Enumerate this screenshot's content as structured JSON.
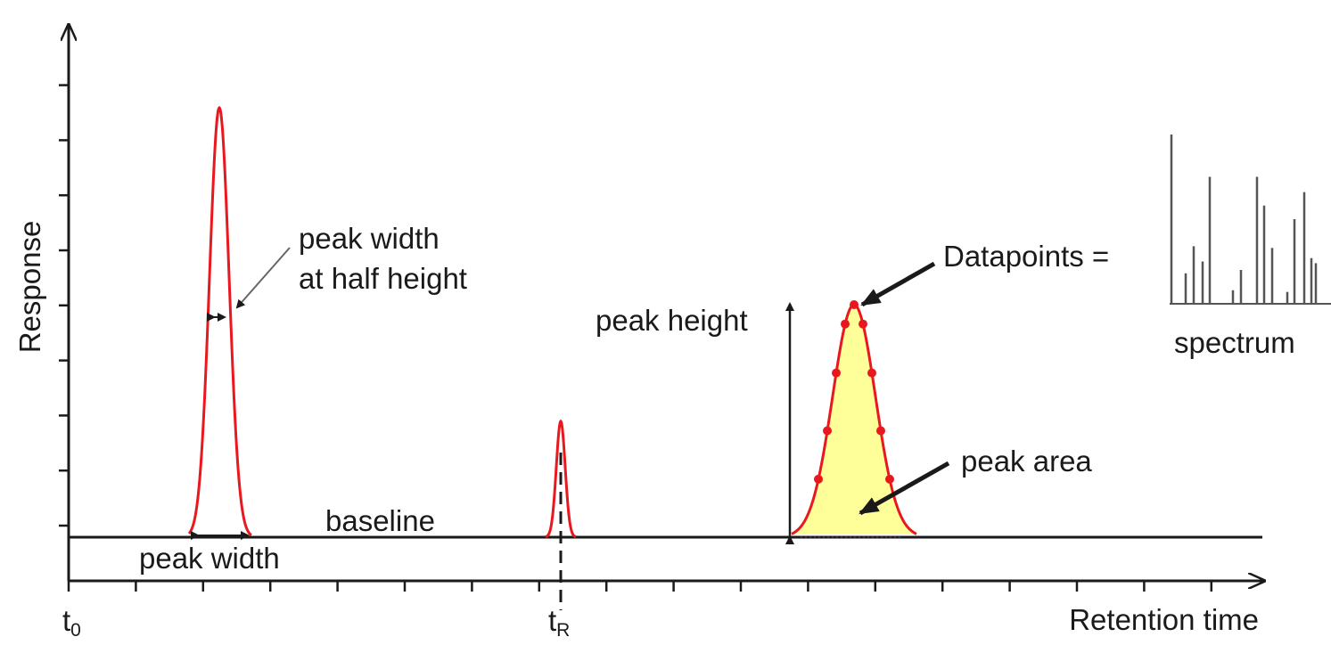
{
  "labels": {
    "y_axis": "Response",
    "x_axis": "Retention time",
    "t0_main": "t",
    "t0_sub": "0",
    "tR_main": "t",
    "tR_sub": "R",
    "peak_width_half_line1": "peak width",
    "peak_width_half_line2": "at half height",
    "peak_width": "peak width",
    "baseline": "baseline",
    "peak_height": "peak height",
    "datapoints": "Datapoints =",
    "peak_area": "peak area",
    "spectrum": "spectrum"
  },
  "colors": {
    "peak": "#e8181e",
    "area_fill": "#ffff99",
    "axis": "#1a1a1a",
    "spectrum_bars": "#555555"
  },
  "spectrum_intensities": [
    1.0,
    0.18,
    0.34,
    0.25,
    0.75,
    0.08,
    0.2,
    0.75,
    0.58,
    0.33,
    0.07,
    0.5,
    0.27,
    0.66,
    0.24
  ]
}
